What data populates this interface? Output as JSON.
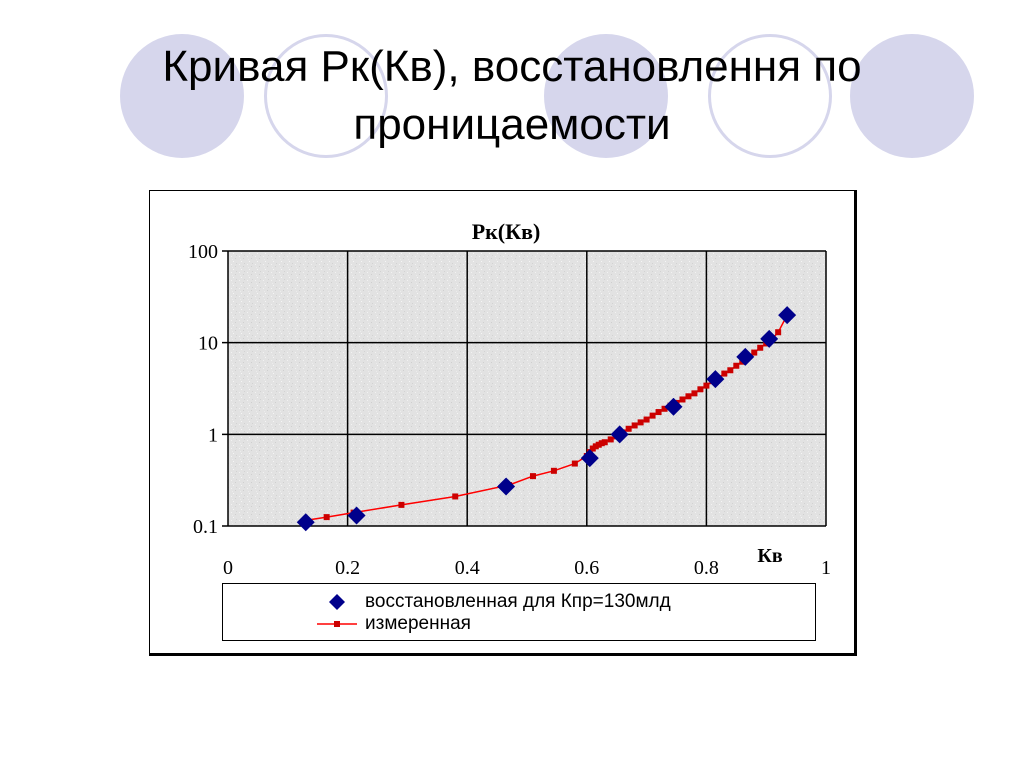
{
  "slide": {
    "title_line1": "Кривая Рк(Кв), восстановлення по",
    "title_line2": "проницаемости"
  },
  "colors": {
    "decor": "#d6d6ec",
    "restored": "#00008b",
    "measured_line": "#ff0000",
    "measured_marker": "#cc0000",
    "plot_bg": "#e4e4e4",
    "grid": "#000000"
  },
  "legend": {
    "restored_label": "восстановленная для Кпр=130млд",
    "measured_label": "измеренная"
  },
  "chart_data": {
    "type": "scatter",
    "title": "Рк(Кв)",
    "xlabel": "Кв",
    "ylabel": "",
    "xlim": [
      0,
      1
    ],
    "ylim": [
      0.1,
      100
    ],
    "yscale": "log",
    "grid": true,
    "legend_position": "bottom",
    "x_ticks": [
      "0",
      "0.2",
      "0.4",
      "0.6",
      "0.8",
      "1"
    ],
    "y_ticks": [
      "0.1",
      "1",
      "10",
      "100"
    ],
    "series": [
      {
        "name": "восстановленная для Кпр=130млд",
        "marker": "diamond",
        "x": [
          0.13,
          0.215,
          0.465,
          0.605,
          0.655,
          0.745,
          0.815,
          0.865,
          0.905,
          0.935
        ],
        "y": [
          0.11,
          0.13,
          0.27,
          0.55,
          1.0,
          2.0,
          4.0,
          7.0,
          11.0,
          20.0
        ]
      },
      {
        "name": "измеренная",
        "marker": "square-line",
        "x": [
          0.13,
          0.165,
          0.21,
          0.29,
          0.38,
          0.47,
          0.51,
          0.545,
          0.58,
          0.6,
          0.605,
          0.61,
          0.615,
          0.62,
          0.625,
          0.63,
          0.64,
          0.65,
          0.66,
          0.67,
          0.68,
          0.69,
          0.7,
          0.71,
          0.72,
          0.73,
          0.74,
          0.75,
          0.76,
          0.77,
          0.78,
          0.79,
          0.8,
          0.81,
          0.82,
          0.83,
          0.84,
          0.85,
          0.86,
          0.87,
          0.88,
          0.89,
          0.9,
          0.91,
          0.92,
          0.935
        ],
        "y": [
          0.115,
          0.125,
          0.14,
          0.17,
          0.21,
          0.28,
          0.35,
          0.4,
          0.48,
          0.58,
          0.64,
          0.7,
          0.74,
          0.77,
          0.8,
          0.82,
          0.88,
          0.95,
          1.05,
          1.15,
          1.25,
          1.35,
          1.45,
          1.6,
          1.75,
          1.9,
          2.05,
          2.2,
          2.4,
          2.6,
          2.8,
          3.1,
          3.4,
          3.8,
          4.1,
          4.6,
          5.0,
          5.6,
          6.2,
          7.0,
          7.8,
          8.8,
          9.8,
          11.0,
          13.0,
          20.0
        ]
      }
    ]
  }
}
